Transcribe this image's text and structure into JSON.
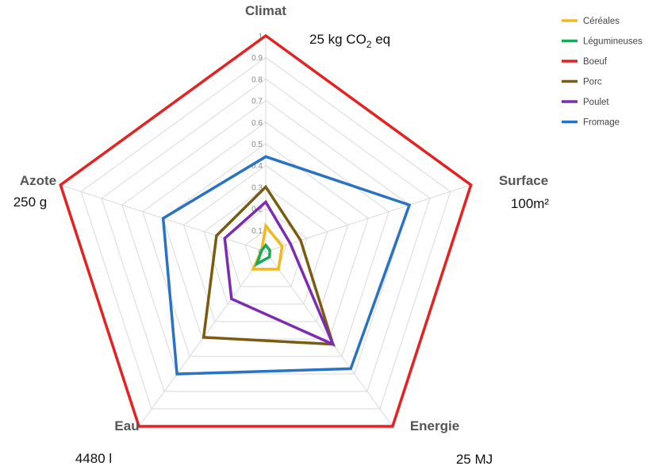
{
  "chart_data": {
    "type": "radar",
    "axes": [
      {
        "name": "Climat",
        "reference": "25 kg CO",
        "reference_sub": "2",
        "reference_suffix": " eq"
      },
      {
        "name": "Surface",
        "reference": "100m²"
      },
      {
        "name": "Energie",
        "reference": "25 MJ"
      },
      {
        "name": "Eau",
        "reference": "4480 l"
      },
      {
        "name": "Azote",
        "reference": "250 g"
      }
    ],
    "ticks": [
      "0",
      "0.1",
      "0.2",
      "0.3",
      "0.4",
      "0.5",
      "0.6",
      "0.7",
      "0.8",
      "0.9",
      "1"
    ],
    "rlim": [
      0,
      1
    ],
    "legend_position": "top-right",
    "series": [
      {
        "name": "Céréales",
        "color": "#f2b91e",
        "values": [
          0.12,
          0.08,
          0.1,
          0.1,
          0.02
        ]
      },
      {
        "name": "Légumineuses",
        "color": "#19a957",
        "values": [
          0.03,
          0.02,
          0.03,
          0.07,
          0.02
        ]
      },
      {
        "name": "Boeuf",
        "color": "#e52222",
        "values": [
          1.0,
          1.0,
          1.0,
          1.0,
          1.0
        ]
      },
      {
        "name": "Porc",
        "color": "#7a5c10",
        "values": [
          0.3,
          0.17,
          0.53,
          0.49,
          0.24
        ]
      },
      {
        "name": "Poulet",
        "color": "#7b2cb0",
        "values": [
          0.23,
          0.12,
          0.53,
          0.27,
          0.2
        ]
      },
      {
        "name": "Fromage",
        "color": "#2a72c4",
        "values": [
          0.44,
          0.7,
          0.67,
          0.7,
          0.5
        ]
      }
    ]
  }
}
